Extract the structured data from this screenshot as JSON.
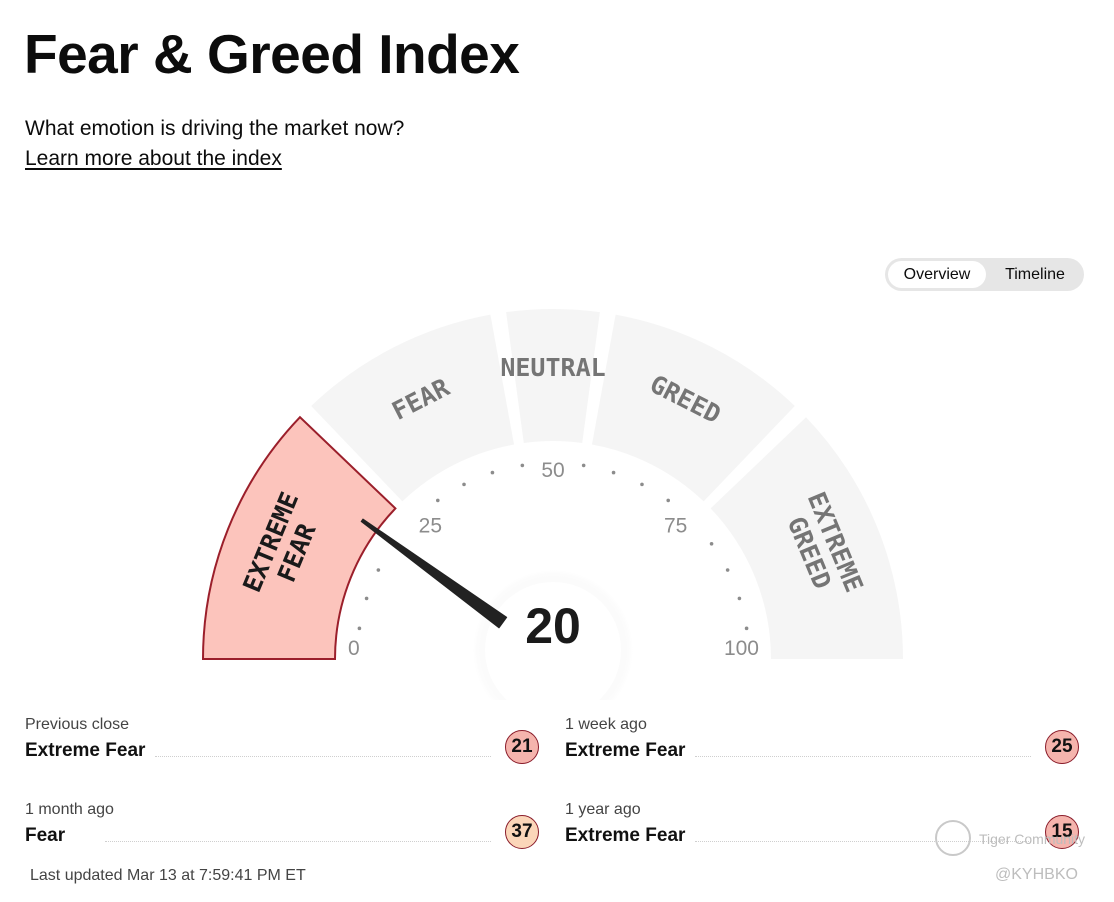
{
  "header": {
    "title": "Fear & Greed Index",
    "subtitle": "What emotion is driving the market now?",
    "learn_link": "Learn more about the index"
  },
  "view_toggle": {
    "options": [
      "Overview",
      "Timeline"
    ],
    "selected": "Overview"
  },
  "gauge": {
    "value": 20,
    "min": 0,
    "max": 100,
    "tick_labels": [
      "0",
      "25",
      "50",
      "75",
      "100"
    ],
    "segments": [
      {
        "label": "EXTREME FEAR",
        "lines": [
          "EXTREME",
          "FEAR"
        ],
        "from": 0,
        "to": 25,
        "active": true
      },
      {
        "label": "FEAR",
        "lines": [
          "FEAR"
        ],
        "from": 25,
        "to": 45,
        "active": false
      },
      {
        "label": "NEUTRAL",
        "lines": [
          "NEUTRAL"
        ],
        "from": 45,
        "to": 55,
        "active": false
      },
      {
        "label": "GREED",
        "lines": [
          "GREED"
        ],
        "from": 55,
        "to": 75,
        "active": false
      },
      {
        "label": "EXTREME GREED",
        "lines": [
          "EXTREME",
          "GREED"
        ],
        "from": 75,
        "to": 100,
        "active": false
      }
    ],
    "colors": {
      "active_fill": "#fcc4bc",
      "active_stroke": "#9b1f2b",
      "inactive_fill": "#f5f5f5",
      "label_inactive": "#757575",
      "label_active": "#1a1a1a",
      "needle": "#222222"
    }
  },
  "history": [
    {
      "label": "Previous close",
      "rating": "Extreme Fear",
      "value": "21",
      "tone": "extreme-fear"
    },
    {
      "label": "1 week ago",
      "rating": "Extreme Fear",
      "value": "25",
      "tone": "extreme-fear"
    },
    {
      "label": "1 month ago",
      "rating": "Fear",
      "value": "37",
      "tone": "fear"
    },
    {
      "label": "1 year ago",
      "rating": "Extreme Fear",
      "value": "15",
      "tone": "extreme-fear"
    }
  ],
  "last_updated": "Last updated Mar 13 at 7:59:41 PM ET",
  "watermark": {
    "name": "Tiger Community",
    "user": "@KYHBKO"
  }
}
